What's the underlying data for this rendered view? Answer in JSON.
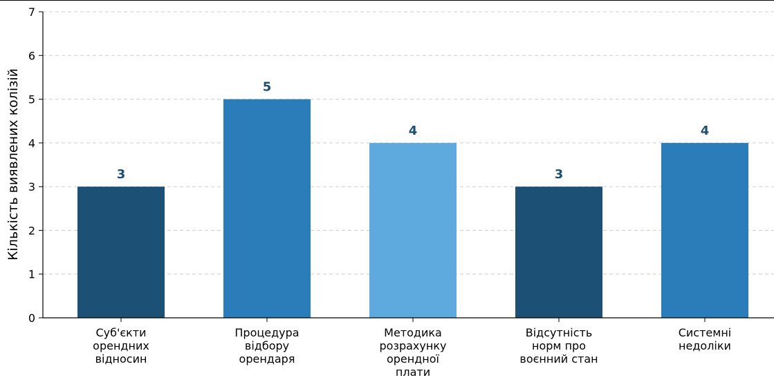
{
  "chart_data": {
    "type": "bar",
    "title": "",
    "xlabel": "",
    "ylabel": "Кількість виявлених колізій",
    "ylim": [
      0,
      7
    ],
    "yticks": [
      0,
      1,
      2,
      3,
      4,
      5,
      6,
      7
    ],
    "grid": "horizontal-dashed",
    "categories": [
      [
        "Суб'єкти",
        "орендних",
        "відносин"
      ],
      [
        "Процедура",
        "відбору",
        "орендаря"
      ],
      [
        "Методика",
        "розрахунку",
        "орендної",
        "плати"
      ],
      [
        "Відсутність",
        "норм про",
        "воєнний стан"
      ],
      [
        "Системні",
        "недоліки"
      ]
    ],
    "values": [
      3,
      5,
      4,
      3,
      4
    ],
    "data_labels": [
      "3",
      "5",
      "4",
      "3",
      "4"
    ],
    "bar_colors": [
      "#1c5074",
      "#2a7db8",
      "#5eaadf",
      "#1c5074",
      "#2a7db8"
    ],
    "data_label_color": "#1c4e70",
    "axis_color": "#000000",
    "grid_color": "#cccccc"
  }
}
